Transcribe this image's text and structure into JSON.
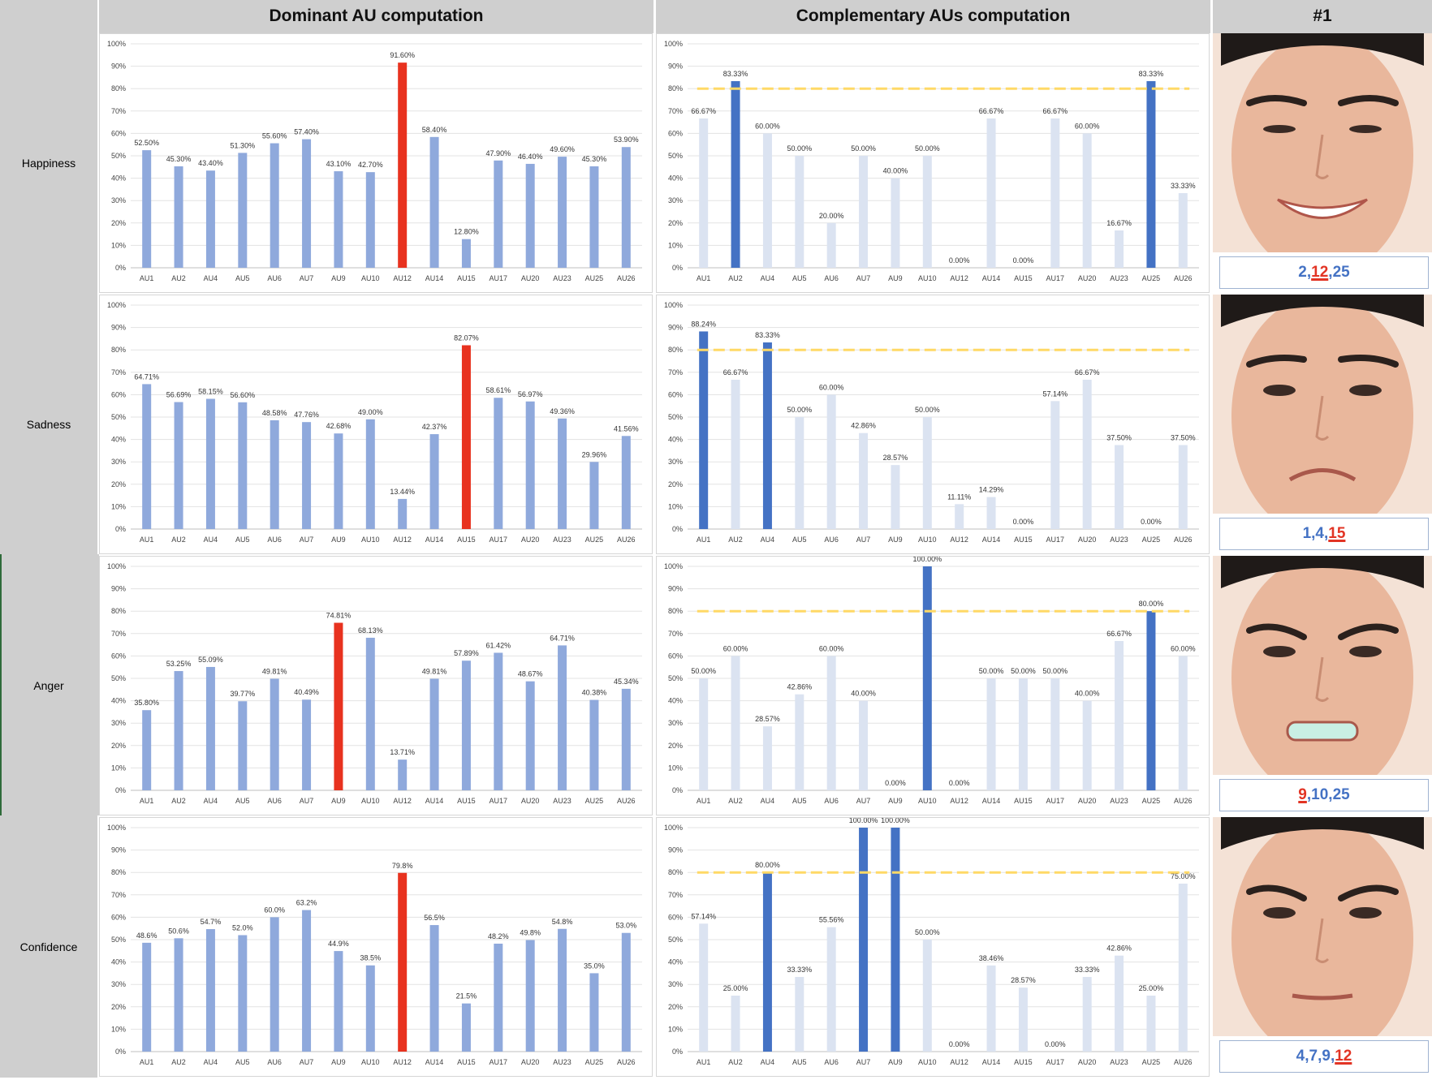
{
  "headers": {
    "dominant": "Dominant AU computation",
    "complementary": "Complementary AUs computation",
    "sample": "#1"
  },
  "colors": {
    "dominant_bar": "#8fa9dc",
    "dominant_highlight": "#e8321f",
    "complementary_bar": "#dbe3f1",
    "complementary_highlight": "#4472c4",
    "threshold_line": "#ffd966",
    "code_blue": "#4472c4",
    "code_red": "#e23424"
  },
  "threshold": 80,
  "rows": [
    {
      "emotion": "Happiness",
      "codes": [
        {
          "text": "2",
          "color": "blue"
        },
        {
          "text": ",",
          "color": "sep"
        },
        {
          "text": "12",
          "color": "red"
        },
        {
          "text": ",",
          "color": "sep"
        },
        {
          "text": "25",
          "color": "blue"
        }
      ]
    },
    {
      "emotion": "Sadness",
      "codes": [
        {
          "text": "1",
          "color": "blue"
        },
        {
          "text": ",",
          "color": "sep"
        },
        {
          "text": "4",
          "color": "blue"
        },
        {
          "text": ",",
          "color": "sep"
        },
        {
          "text": "15",
          "color": "red"
        }
      ]
    },
    {
      "emotion": "Anger",
      "codes": [
        {
          "text": "9",
          "color": "red"
        },
        {
          "text": ",",
          "color": "sep"
        },
        {
          "text": "10",
          "color": "blue"
        },
        {
          "text": ",",
          "color": "sep"
        },
        {
          "text": "25",
          "color": "blue"
        }
      ]
    },
    {
      "emotion": "Confidence",
      "codes": [
        {
          "text": "4",
          "color": "blue"
        },
        {
          "text": ",",
          "color": "sep"
        },
        {
          "text": "7",
          "color": "blue"
        },
        {
          "text": ",",
          "color": "sep"
        },
        {
          "text": "9",
          "color": "blue"
        },
        {
          "text": ",",
          "color": "sep"
        },
        {
          "text": "12",
          "color": "red"
        }
      ]
    }
  ],
  "chart_data": [
    {
      "type": "bar",
      "panel": "dominant",
      "emotion": "Happiness",
      "categories": [
        "AU1",
        "AU2",
        "AU4",
        "AU5",
        "AU6",
        "AU7",
        "AU9",
        "AU10",
        "AU12",
        "AU14",
        "AU15",
        "AU17",
        "AU20",
        "AU23",
        "AU25",
        "AU26"
      ],
      "values": [
        52.5,
        45.3,
        43.4,
        51.3,
        55.6,
        57.4,
        43.1,
        42.7,
        91.6,
        58.4,
        12.8,
        47.9,
        46.4,
        49.6,
        45.3,
        53.9
      ],
      "labels": [
        "52.50%",
        "45.30%",
        "43.40%",
        "51.30%",
        "55.60%",
        "57.40%",
        "43.10%",
        "42.70%",
        "91.60%",
        "58.40%",
        "12.80%",
        "47.90%",
        "46.40%",
        "49.60%",
        "45.30%",
        "53.90%"
      ],
      "highlight": [
        8
      ],
      "ylim": [
        0,
        100
      ],
      "yticks": [
        "0%",
        "10%",
        "20%",
        "30%",
        "40%",
        "50%",
        "60%",
        "70%",
        "80%",
        "90%",
        "100%"
      ],
      "grid": true
    },
    {
      "type": "bar",
      "panel": "complementary",
      "emotion": "Happiness",
      "categories": [
        "AU1",
        "AU2",
        "AU4",
        "AU5",
        "AU6",
        "AU7",
        "AU9",
        "AU10",
        "AU12",
        "AU14",
        "AU15",
        "AU17",
        "AU20",
        "AU23",
        "AU25",
        "AU26"
      ],
      "values": [
        66.67,
        83.33,
        60.0,
        50.0,
        20.0,
        50.0,
        40.0,
        50.0,
        0.0,
        66.67,
        0.0,
        66.67,
        60.0,
        16.67,
        83.33,
        33.33
      ],
      "labels": [
        "66.67%",
        "83.33%",
        "60.00%",
        "50.00%",
        "20.00%",
        "50.00%",
        "40.00%",
        "50.00%",
        "0.00%",
        "66.67%",
        "0.00%",
        "66.67%",
        "60.00%",
        "16.67%",
        "83.33%",
        "33.33%"
      ],
      "highlight": [
        1,
        14
      ],
      "threshold": 80,
      "ylim": [
        0,
        100
      ],
      "yticks": [
        "0%",
        "10%",
        "20%",
        "30%",
        "40%",
        "50%",
        "60%",
        "70%",
        "80%",
        "90%",
        "100%"
      ],
      "grid": true
    },
    {
      "type": "bar",
      "panel": "dominant",
      "emotion": "Sadness",
      "categories": [
        "AU1",
        "AU2",
        "AU4",
        "AU5",
        "AU6",
        "AU7",
        "AU9",
        "AU10",
        "AU12",
        "AU14",
        "AU15",
        "AU17",
        "AU20",
        "AU23",
        "AU25",
        "AU26"
      ],
      "values": [
        64.71,
        56.69,
        58.15,
        56.6,
        48.58,
        47.76,
        42.68,
        49.0,
        13.44,
        42.37,
        82.07,
        58.61,
        56.97,
        49.36,
        29.96,
        41.56
      ],
      "labels": [
        "64.71%",
        "56.69%",
        "58.15%",
        "56.60%",
        "48.58%",
        "47.76%",
        "42.68%",
        "49.00%",
        "13.44%",
        "42.37%",
        "82.07%",
        "58.61%",
        "56.97%",
        "49.36%",
        "29.96%",
        "41.56%"
      ],
      "highlight": [
        10
      ],
      "ylim": [
        0,
        100
      ],
      "yticks": [
        "0%",
        "10%",
        "20%",
        "30%",
        "40%",
        "50%",
        "60%",
        "70%",
        "80%",
        "90%",
        "100%"
      ],
      "grid": true
    },
    {
      "type": "bar",
      "panel": "complementary",
      "emotion": "Sadness",
      "categories": [
        "AU1",
        "AU2",
        "AU4",
        "AU5",
        "AU6",
        "AU7",
        "AU9",
        "AU10",
        "AU12",
        "AU14",
        "AU15",
        "AU17",
        "AU20",
        "AU23",
        "AU25",
        "AU26"
      ],
      "values": [
        88.24,
        66.67,
        83.33,
        50.0,
        60.0,
        42.86,
        28.57,
        50.0,
        11.11,
        14.29,
        0.0,
        57.14,
        66.67,
        37.5,
        0.0,
        37.5
      ],
      "labels": [
        "88.24%",
        "66.67%",
        "83.33%",
        "50.00%",
        "60.00%",
        "42.86%",
        "28.57%",
        "50.00%",
        "11.11%",
        "14.29%",
        "0.00%",
        "57.14%",
        "66.67%",
        "37.50%",
        "0.00%",
        "37.50%"
      ],
      "highlight": [
        0,
        2
      ],
      "threshold": 80,
      "ylim": [
        0,
        100
      ],
      "yticks": [
        "0%",
        "10%",
        "20%",
        "30%",
        "40%",
        "50%",
        "60%",
        "70%",
        "80%",
        "90%",
        "100%"
      ],
      "grid": true
    },
    {
      "type": "bar",
      "panel": "dominant",
      "emotion": "Anger",
      "categories": [
        "AU1",
        "AU2",
        "AU4",
        "AU5",
        "AU6",
        "AU7",
        "AU9",
        "AU10",
        "AU12",
        "AU14",
        "AU15",
        "AU17",
        "AU20",
        "AU23",
        "AU25",
        "AU26"
      ],
      "values": [
        35.8,
        53.25,
        55.09,
        39.77,
        49.81,
        40.49,
        74.81,
        68.13,
        13.71,
        49.81,
        57.89,
        61.42,
        48.67,
        64.71,
        40.38,
        45.34
      ],
      "labels": [
        "35.80%",
        "53.25%",
        "55.09%",
        "39.77%",
        "49.81%",
        "40.49%",
        "74.81%",
        "68.13%",
        "13.71%",
        "49.81%",
        "57.89%",
        "61.42%",
        "48.67%",
        "64.71%",
        "40.38%",
        "45.34%"
      ],
      "highlight": [
        6
      ],
      "ylim": [
        0,
        100
      ],
      "yticks": [
        "0%",
        "10%",
        "20%",
        "30%",
        "40%",
        "50%",
        "60%",
        "70%",
        "80%",
        "90%",
        "100%"
      ],
      "grid": true
    },
    {
      "type": "bar",
      "panel": "complementary",
      "emotion": "Anger",
      "categories": [
        "AU1",
        "AU2",
        "AU4",
        "AU5",
        "AU6",
        "AU7",
        "AU9",
        "AU10",
        "AU12",
        "AU14",
        "AU15",
        "AU17",
        "AU20",
        "AU23",
        "AU25",
        "AU26"
      ],
      "values": [
        50.0,
        60.0,
        28.57,
        42.86,
        60.0,
        40.0,
        0.0,
        100.0,
        0.0,
        50.0,
        50.0,
        50.0,
        40.0,
        66.67,
        80.0,
        60.0
      ],
      "labels": [
        "50.00%",
        "60.00%",
        "28.57%",
        "42.86%",
        "60.00%",
        "40.00%",
        "0.00%",
        "100.00%",
        "0.00%",
        "50.00%",
        "50.00%",
        "50.00%",
        "40.00%",
        "66.67%",
        "80.00%",
        "60.00%"
      ],
      "highlight": [
        7,
        14
      ],
      "threshold": 80,
      "ylim": [
        0,
        100
      ],
      "yticks": [
        "0%",
        "10%",
        "20%",
        "30%",
        "40%",
        "50%",
        "60%",
        "70%",
        "80%",
        "90%",
        "100%"
      ],
      "grid": true
    },
    {
      "type": "bar",
      "panel": "dominant",
      "emotion": "Confidence",
      "categories": [
        "AU1",
        "AU2",
        "AU4",
        "AU5",
        "AU6",
        "AU7",
        "AU9",
        "AU10",
        "AU12",
        "AU14",
        "AU15",
        "AU17",
        "AU20",
        "AU23",
        "AU25",
        "AU26"
      ],
      "values": [
        48.6,
        50.6,
        54.7,
        52.0,
        60.0,
        63.2,
        44.9,
        38.5,
        79.8,
        56.5,
        21.5,
        48.2,
        49.8,
        54.8,
        35.0,
        53.0
      ],
      "labels": [
        "48.6%",
        "50.6%",
        "54.7%",
        "52.0%",
        "60.0%",
        "63.2%",
        "44.9%",
        "38.5%",
        "79.8%",
        "56.5%",
        "21.5%",
        "48.2%",
        "49.8%",
        "54.8%",
        "35.0%",
        "53.0%"
      ],
      "highlight": [
        8
      ],
      "ylim": [
        0,
        100
      ],
      "yticks": [
        "0%",
        "10%",
        "20%",
        "30%",
        "40%",
        "50%",
        "60%",
        "70%",
        "80%",
        "90%",
        "100%"
      ],
      "grid": true
    },
    {
      "type": "bar",
      "panel": "complementary",
      "emotion": "Confidence",
      "categories": [
        "AU1",
        "AU2",
        "AU4",
        "AU5",
        "AU6",
        "AU7",
        "AU9",
        "AU10",
        "AU12",
        "AU14",
        "AU15",
        "AU17",
        "AU20",
        "AU23",
        "AU25",
        "AU26"
      ],
      "values": [
        57.14,
        25.0,
        80.0,
        33.33,
        55.56,
        100.0,
        100.0,
        50.0,
        0.0,
        38.46,
        28.57,
        0.0,
        33.33,
        42.86,
        25.0,
        75.0
      ],
      "labels": [
        "57.14%",
        "25.00%",
        "80.00%",
        "33.33%",
        "55.56%",
        "100.00%",
        "100.00%",
        "50.00%",
        "0.00%",
        "38.46%",
        "28.57%",
        "0.00%",
        "33.33%",
        "42.86%",
        "25.00%",
        "75.00%"
      ],
      "highlight": [
        2,
        5,
        6
      ],
      "threshold": 80,
      "ylim": [
        0,
        100
      ],
      "yticks": [
        "0%",
        "10%",
        "20%",
        "30%",
        "40%",
        "50%",
        "60%",
        "70%",
        "80%",
        "90%",
        "100%"
      ],
      "grid": true
    }
  ]
}
